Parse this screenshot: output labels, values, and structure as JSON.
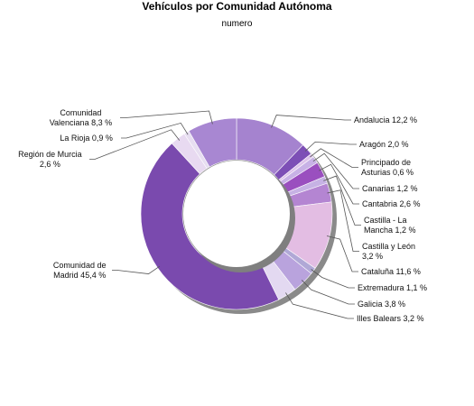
{
  "chart_data": {
    "type": "pie",
    "variant": "donut",
    "title": "Vehículos por Comunidad Autónoma",
    "subtitle": "numero",
    "slices": [
      {
        "label": "Andalucia",
        "value_text": "12,2 %",
        "value": 12.2,
        "color": "#a583cf"
      },
      {
        "label": "Aragón",
        "value_text": "2,0 %",
        "value": 2.0,
        "color": "#7d4fb6"
      },
      {
        "label": "Principado de Asturias",
        "value_text": "0,6 %",
        "value": 0.6,
        "color": "#ddc3ea"
      },
      {
        "label": "Canarias",
        "value_text": "1,2 %",
        "value": 1.2,
        "color": "#c8b2e6"
      },
      {
        "label": "Cantabria",
        "value_text": "2,6 %",
        "value": 2.6,
        "color": "#9a4fbf"
      },
      {
        "label": "Castilla - La Mancha",
        "value_text": "1,2 %",
        "value": 1.2,
        "color": "#c6b2e4"
      },
      {
        "label": "Castilla y León",
        "value_text": "3,2 %",
        "value": 3.2,
        "color": "#b485d2"
      },
      {
        "label": "Cataluña",
        "value_text": "11,6 %",
        "value": 11.6,
        "color": "#e3bde3"
      },
      {
        "label": "Extremadura",
        "value_text": "1,1 %",
        "value": 1.1,
        "color": "#b0a8d6"
      },
      {
        "label": "Galicia",
        "value_text": "3,8 %",
        "value": 3.8,
        "color": "#b9a3dd"
      },
      {
        "label": "Illes Balears",
        "value_text": "3,2 %",
        "value": 3.2,
        "color": "#e3d9f1"
      },
      {
        "label": "Comunidad de Madrid",
        "value_text": "45,4 %",
        "value": 45.4,
        "color": "#7a4aae"
      },
      {
        "label": "Región de Murcia",
        "value_text": "2,6 %",
        "value": 2.6,
        "color": "#e8daf1"
      },
      {
        "label": "La Rioja",
        "value_text": "0,9 %",
        "value": 0.9,
        "color": "#e7def1"
      },
      {
        "label": "Comunidad Valenciana",
        "value_text": "8,3 %",
        "value": 8.3,
        "color": "#a887d2"
      }
    ],
    "start_angle_deg": 0,
    "direction": "clockwise",
    "legend": "none",
    "labels": "outside-with-leader-lines"
  }
}
